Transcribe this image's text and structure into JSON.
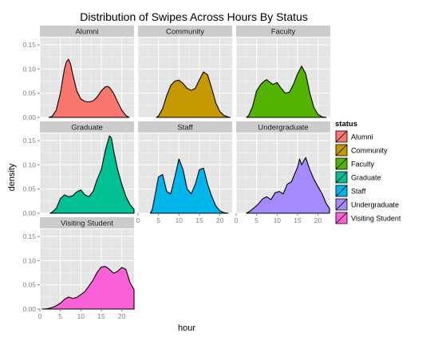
{
  "chart_data": {
    "type": "area",
    "title": "Distribution of Swipes Across Hours By Status",
    "xlabel": "hour",
    "ylabel": "density",
    "xlim": [
      0,
      23
    ],
    "ylim": [
      0,
      0.165
    ],
    "x_ticks": [
      0,
      5,
      10,
      15,
      20
    ],
    "y_ticks": [
      0.0,
      0.05,
      0.1,
      0.15
    ],
    "y_tick_labels": [
      "0.00",
      "0.05",
      "0.10",
      "0.15"
    ],
    "grid": true,
    "legend": {
      "title": "status",
      "position": "right",
      "entries": [
        "Alumni",
        "Community",
        "Faculty",
        "Graduate",
        "Staff",
        "Undergraduate",
        "Visiting Student"
      ]
    },
    "facets": [
      {
        "name": "Alumni",
        "color": "#F8766D",
        "x": [
          2.2,
          3,
          4,
          5,
          6,
          6.5,
          7,
          7.5,
          8,
          9,
          10,
          11,
          12,
          13,
          14,
          15,
          16,
          16.5,
          17,
          18,
          19,
          20,
          21,
          21.8
        ],
        "y": [
          0.0,
          0.002,
          0.015,
          0.05,
          0.1,
          0.115,
          0.12,
          0.11,
          0.09,
          0.055,
          0.038,
          0.033,
          0.032,
          0.034,
          0.042,
          0.055,
          0.063,
          0.064,
          0.062,
          0.05,
          0.032,
          0.015,
          0.004,
          0.0
        ]
      },
      {
        "name": "Community",
        "color": "#C49A00",
        "x": [
          4.5,
          5,
          6,
          7,
          8,
          9,
          10,
          11,
          12,
          13,
          14,
          15,
          16,
          17,
          18,
          19,
          20,
          21,
          22,
          22.5
        ],
        "y": [
          0.0,
          0.003,
          0.018,
          0.045,
          0.066,
          0.075,
          0.077,
          0.07,
          0.06,
          0.056,
          0.06,
          0.078,
          0.094,
          0.088,
          0.06,
          0.03,
          0.012,
          0.004,
          0.001,
          0.0
        ]
      },
      {
        "name": "Faculty",
        "color": "#53B400",
        "x": [
          2.5,
          3,
          4,
          5,
          6,
          7,
          7.5,
          8,
          9,
          10,
          11,
          12,
          13,
          14,
          15,
          16,
          17,
          18,
          19,
          20,
          21,
          22
        ],
        "y": [
          0.0,
          0.003,
          0.022,
          0.055,
          0.068,
          0.076,
          0.078,
          0.074,
          0.068,
          0.072,
          0.06,
          0.05,
          0.052,
          0.068,
          0.09,
          0.106,
          0.09,
          0.05,
          0.02,
          0.006,
          0.001,
          0.0
        ]
      },
      {
        "name": "Graduate",
        "color": "#00C094",
        "x": [
          2.5,
          3,
          4,
          5,
          6,
          7,
          8,
          9,
          10,
          11,
          12,
          13,
          14,
          15,
          16,
          17,
          17.5,
          18,
          19,
          20,
          21,
          22,
          23
        ],
        "y": [
          0.0,
          0.002,
          0.01,
          0.03,
          0.038,
          0.034,
          0.036,
          0.044,
          0.048,
          0.038,
          0.034,
          0.045,
          0.07,
          0.09,
          0.13,
          0.16,
          0.155,
          0.13,
          0.09,
          0.06,
          0.035,
          0.018,
          0.008
        ]
      },
      {
        "name": "Staff",
        "color": "#00B6EB",
        "x": [
          3,
          3.5,
          4,
          5,
          6,
          7,
          8,
          9,
          10,
          11,
          12,
          13,
          14,
          15,
          16,
          17,
          18,
          19,
          20,
          21,
          22
        ],
        "y": [
          0.0,
          0.008,
          0.03,
          0.075,
          0.08,
          0.045,
          0.04,
          0.075,
          0.112,
          0.09,
          0.05,
          0.04,
          0.06,
          0.09,
          0.093,
          0.06,
          0.035,
          0.015,
          0.005,
          0.001,
          0.0
        ]
      },
      {
        "name": "Undergraduate",
        "color": "#A58AFF",
        "x": [
          2.5,
          3.5,
          4.5,
          5.5,
          6.5,
          7.5,
          8.5,
          9.5,
          10.5,
          11.5,
          12.5,
          13.5,
          14.5,
          15,
          15.5,
          16,
          16.5,
          17,
          17.5,
          18,
          19,
          20,
          21,
          22,
          22.8
        ],
        "y": [
          0.0,
          0.005,
          0.012,
          0.02,
          0.03,
          0.034,
          0.028,
          0.042,
          0.045,
          0.04,
          0.06,
          0.065,
          0.085,
          0.095,
          0.112,
          0.1,
          0.108,
          0.115,
          0.102,
          0.09,
          0.07,
          0.055,
          0.04,
          0.02,
          0.01
        ]
      },
      {
        "name": "Visiting Student",
        "color": "#FB61D7",
        "x": [
          0.5,
          1,
          2,
          3,
          4,
          5,
          6,
          7,
          8,
          9,
          10,
          11,
          12,
          13,
          14,
          15,
          16,
          17,
          18,
          19,
          20,
          21,
          22,
          23
        ],
        "y": [
          0.0,
          0.0,
          0.001,
          0.003,
          0.007,
          0.012,
          0.02,
          0.025,
          0.022,
          0.024,
          0.03,
          0.036,
          0.048,
          0.06,
          0.076,
          0.087,
          0.088,
          0.082,
          0.074,
          0.078,
          0.086,
          0.082,
          0.055,
          0.04
        ]
      }
    ]
  }
}
